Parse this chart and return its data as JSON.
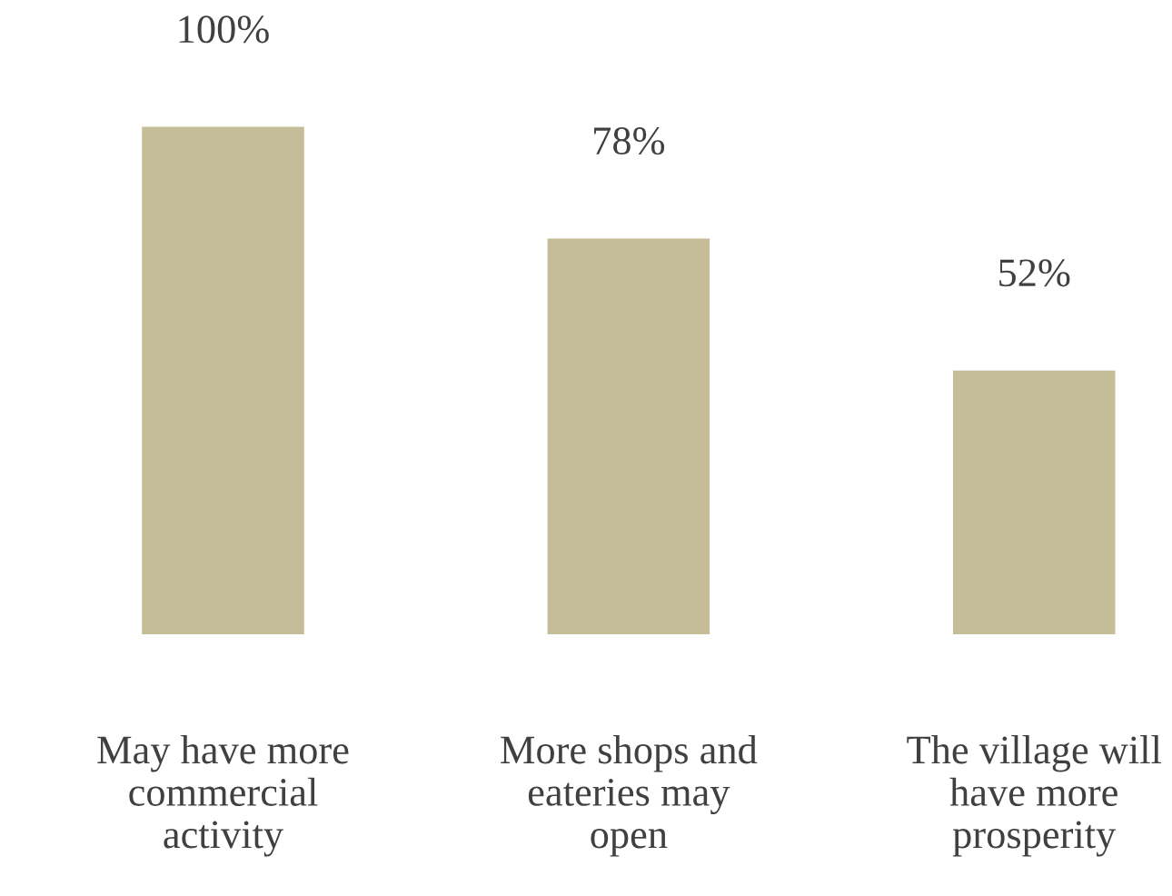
{
  "chart_data": {
    "type": "bar",
    "categories": [
      "May have more\ncommercial\nactivity",
      "More shops and\neateries may\nopen",
      "The village will\nhave more\nprosperity"
    ],
    "values": [
      100,
      78,
      52
    ],
    "value_labels": [
      "100%",
      "78%",
      "52%"
    ],
    "color": "#c5bd97"
  }
}
